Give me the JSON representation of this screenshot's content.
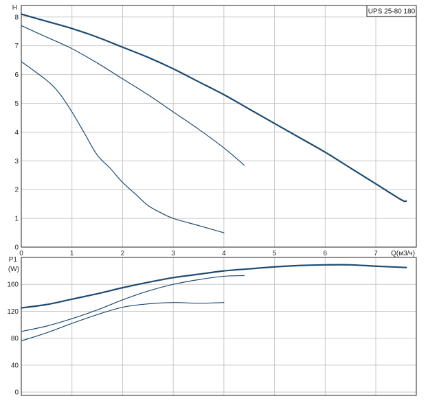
{
  "chart_data": [
    {
      "type": "line",
      "title": "UPS 25-80 180",
      "ylabel": "H",
      "xlabel": "Q(м3/ч)",
      "xlim": [
        0,
        7.8
      ],
      "ylim": [
        0,
        8.4
      ],
      "xticks": [
        0,
        1,
        2,
        3,
        4,
        5,
        6,
        7
      ],
      "yticks": [
        0,
        1,
        2,
        3,
        4,
        5,
        6,
        7,
        8
      ],
      "grid": true,
      "series": [
        {
          "points": [
            [
              0,
              8.1
            ],
            [
              0.5,
              7.85
            ],
            [
              1,
              7.6
            ],
            [
              1.5,
              7.3
            ],
            [
              2,
              6.95
            ],
            [
              2.5,
              6.6
            ],
            [
              3,
              6.2
            ],
            [
              3.5,
              5.75
            ],
            [
              4,
              5.3
            ],
            [
              4.5,
              4.8
            ],
            [
              5,
              4.3
            ],
            [
              5.5,
              3.8
            ],
            [
              6,
              3.3
            ],
            [
              6.5,
              2.75
            ],
            [
              7,
              2.2
            ],
            [
              7.5,
              1.65
            ],
            [
              7.6,
              1.6
            ]
          ],
          "color": "#1d4a70",
          "width": 2.2
        },
        {
          "points": [
            [
              0,
              7.7
            ],
            [
              0.5,
              7.3
            ],
            [
              1,
              6.9
            ],
            [
              1.5,
              6.4
            ],
            [
              2,
              5.85
            ],
            [
              2.5,
              5.3
            ],
            [
              3,
              4.7
            ],
            [
              3.5,
              4.1
            ],
            [
              4,
              3.45
            ],
            [
              4.4,
              2.85
            ]
          ],
          "color": "#1d4a70",
          "width": 1.2
        },
        {
          "points": [
            [
              0,
              6.45
            ],
            [
              0.5,
              5.8
            ],
            [
              0.75,
              5.35
            ],
            [
              1,
              4.7
            ],
            [
              1.25,
              3.95
            ],
            [
              1.5,
              3.2
            ],
            [
              1.75,
              2.75
            ],
            [
              2,
              2.25
            ],
            [
              2.25,
              1.85
            ],
            [
              2.5,
              1.45
            ],
            [
              2.75,
              1.2
            ],
            [
              3,
              1.0
            ],
            [
              3.5,
              0.75
            ],
            [
              4,
              0.5
            ]
          ],
          "color": "#1d4a70",
          "width": 1.2
        }
      ]
    },
    {
      "type": "line",
      "ylabel": "P1",
      "yunit": "(W)",
      "xlim": [
        0,
        7.8
      ],
      "ylim": [
        -5,
        200
      ],
      "xticks": [
        0,
        1,
        2,
        3,
        4,
        5,
        6,
        7
      ],
      "yticks": [
        0,
        40,
        80,
        120,
        160
      ],
      "grid": true,
      "series": [
        {
          "points": [
            [
              0,
              125
            ],
            [
              0.5,
              130
            ],
            [
              1,
              138
            ],
            [
              1.5,
              146
            ],
            [
              2,
              155
            ],
            [
              2.5,
              163
            ],
            [
              3,
              170
            ],
            [
              3.5,
              175
            ],
            [
              4,
              180
            ],
            [
              4.5,
              183
            ],
            [
              5,
              186
            ],
            [
              5.5,
              188
            ],
            [
              6,
              189
            ],
            [
              6.5,
              189
            ],
            [
              7,
              187
            ],
            [
              7.6,
              185
            ]
          ],
          "color": "#1d4a70",
          "width": 2.2
        },
        {
          "points": [
            [
              0,
              90
            ],
            [
              0.5,
              98
            ],
            [
              1,
              109
            ],
            [
              1.5,
              122
            ],
            [
              2,
              137
            ],
            [
              2.5,
              150
            ],
            [
              3,
              160
            ],
            [
              3.5,
              167
            ],
            [
              4,
              172
            ],
            [
              4.4,
              173
            ]
          ],
          "color": "#1d4a70",
          "width": 1.2
        },
        {
          "points": [
            [
              0,
              76
            ],
            [
              0.5,
              88
            ],
            [
              1,
              102
            ],
            [
              1.5,
              115
            ],
            [
              2,
              126
            ],
            [
              2.5,
              131
            ],
            [
              3,
              133
            ],
            [
              3.5,
              132
            ],
            [
              4,
              133
            ]
          ],
          "color": "#1d4a70",
          "width": 1.2
        }
      ]
    }
  ]
}
